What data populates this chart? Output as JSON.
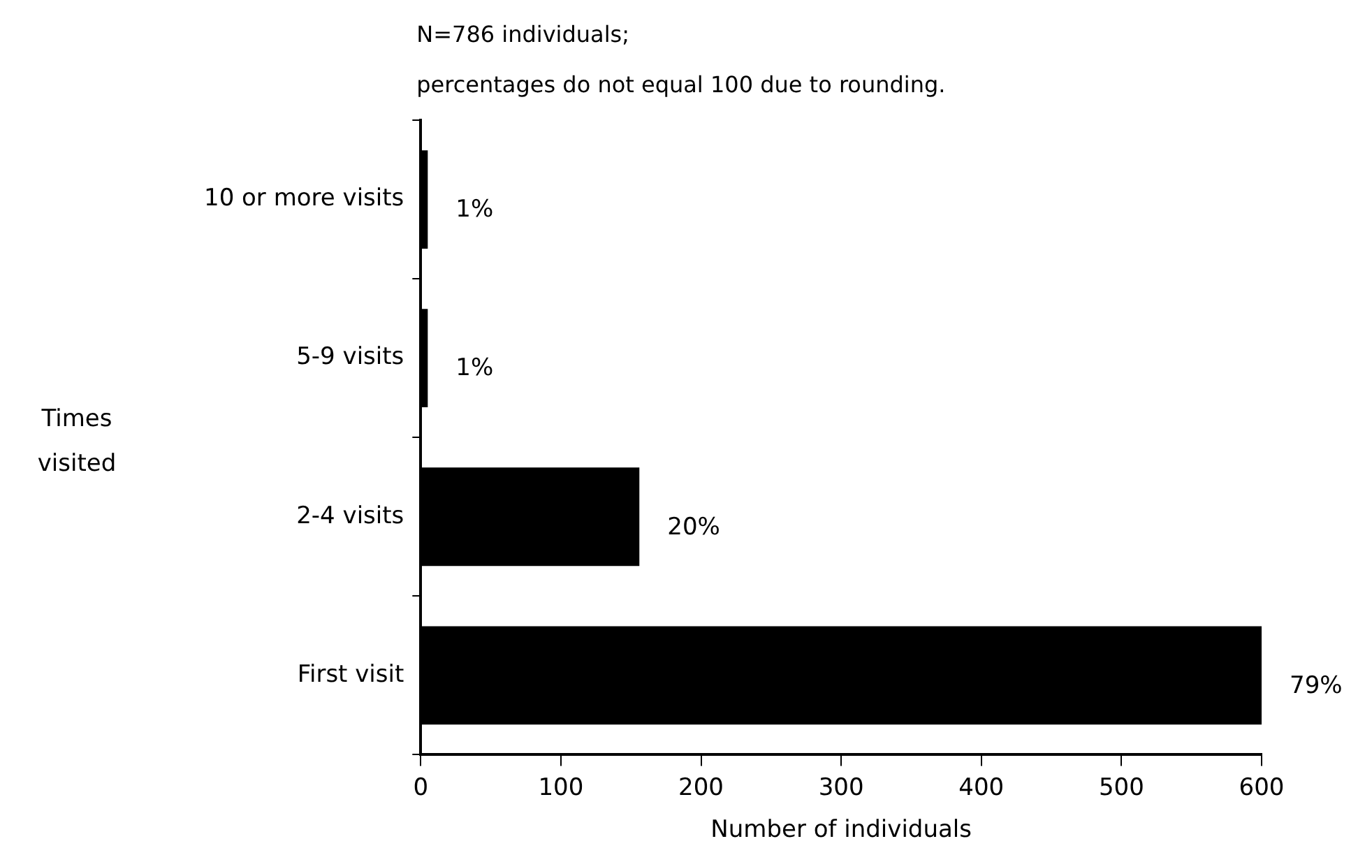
{
  "chart_data": {
    "type": "bar",
    "orientation": "horizontal",
    "title": "N=786 individuals;",
    "subtitle": "percentages do not equal 100 due to rounding.",
    "xlabel": "Number of individuals",
    "ylabel": "Times visited",
    "categories": [
      "10 or more visits",
      "5-9 visits",
      "2-4 visits",
      "First visit"
    ],
    "values": [
      5,
      5,
      156,
      600
    ],
    "color": "#000000",
    "annotations": [
      {
        "text": "1%",
        "x": 5,
        "y": "10 or more visits"
      },
      {
        "text": "1%",
        "x": 5,
        "y": "5-9 visits"
      },
      {
        "text": "20%",
        "x": 156,
        "y": "2-4 visits"
      },
      {
        "text": "79%",
        "x": 600,
        "y": "First visit"
      }
    ],
    "xlim": [
      0,
      600
    ],
    "xticks": [
      0,
      100,
      200,
      300,
      400,
      500,
      600
    ],
    "grid": false,
    "legend": false
  }
}
